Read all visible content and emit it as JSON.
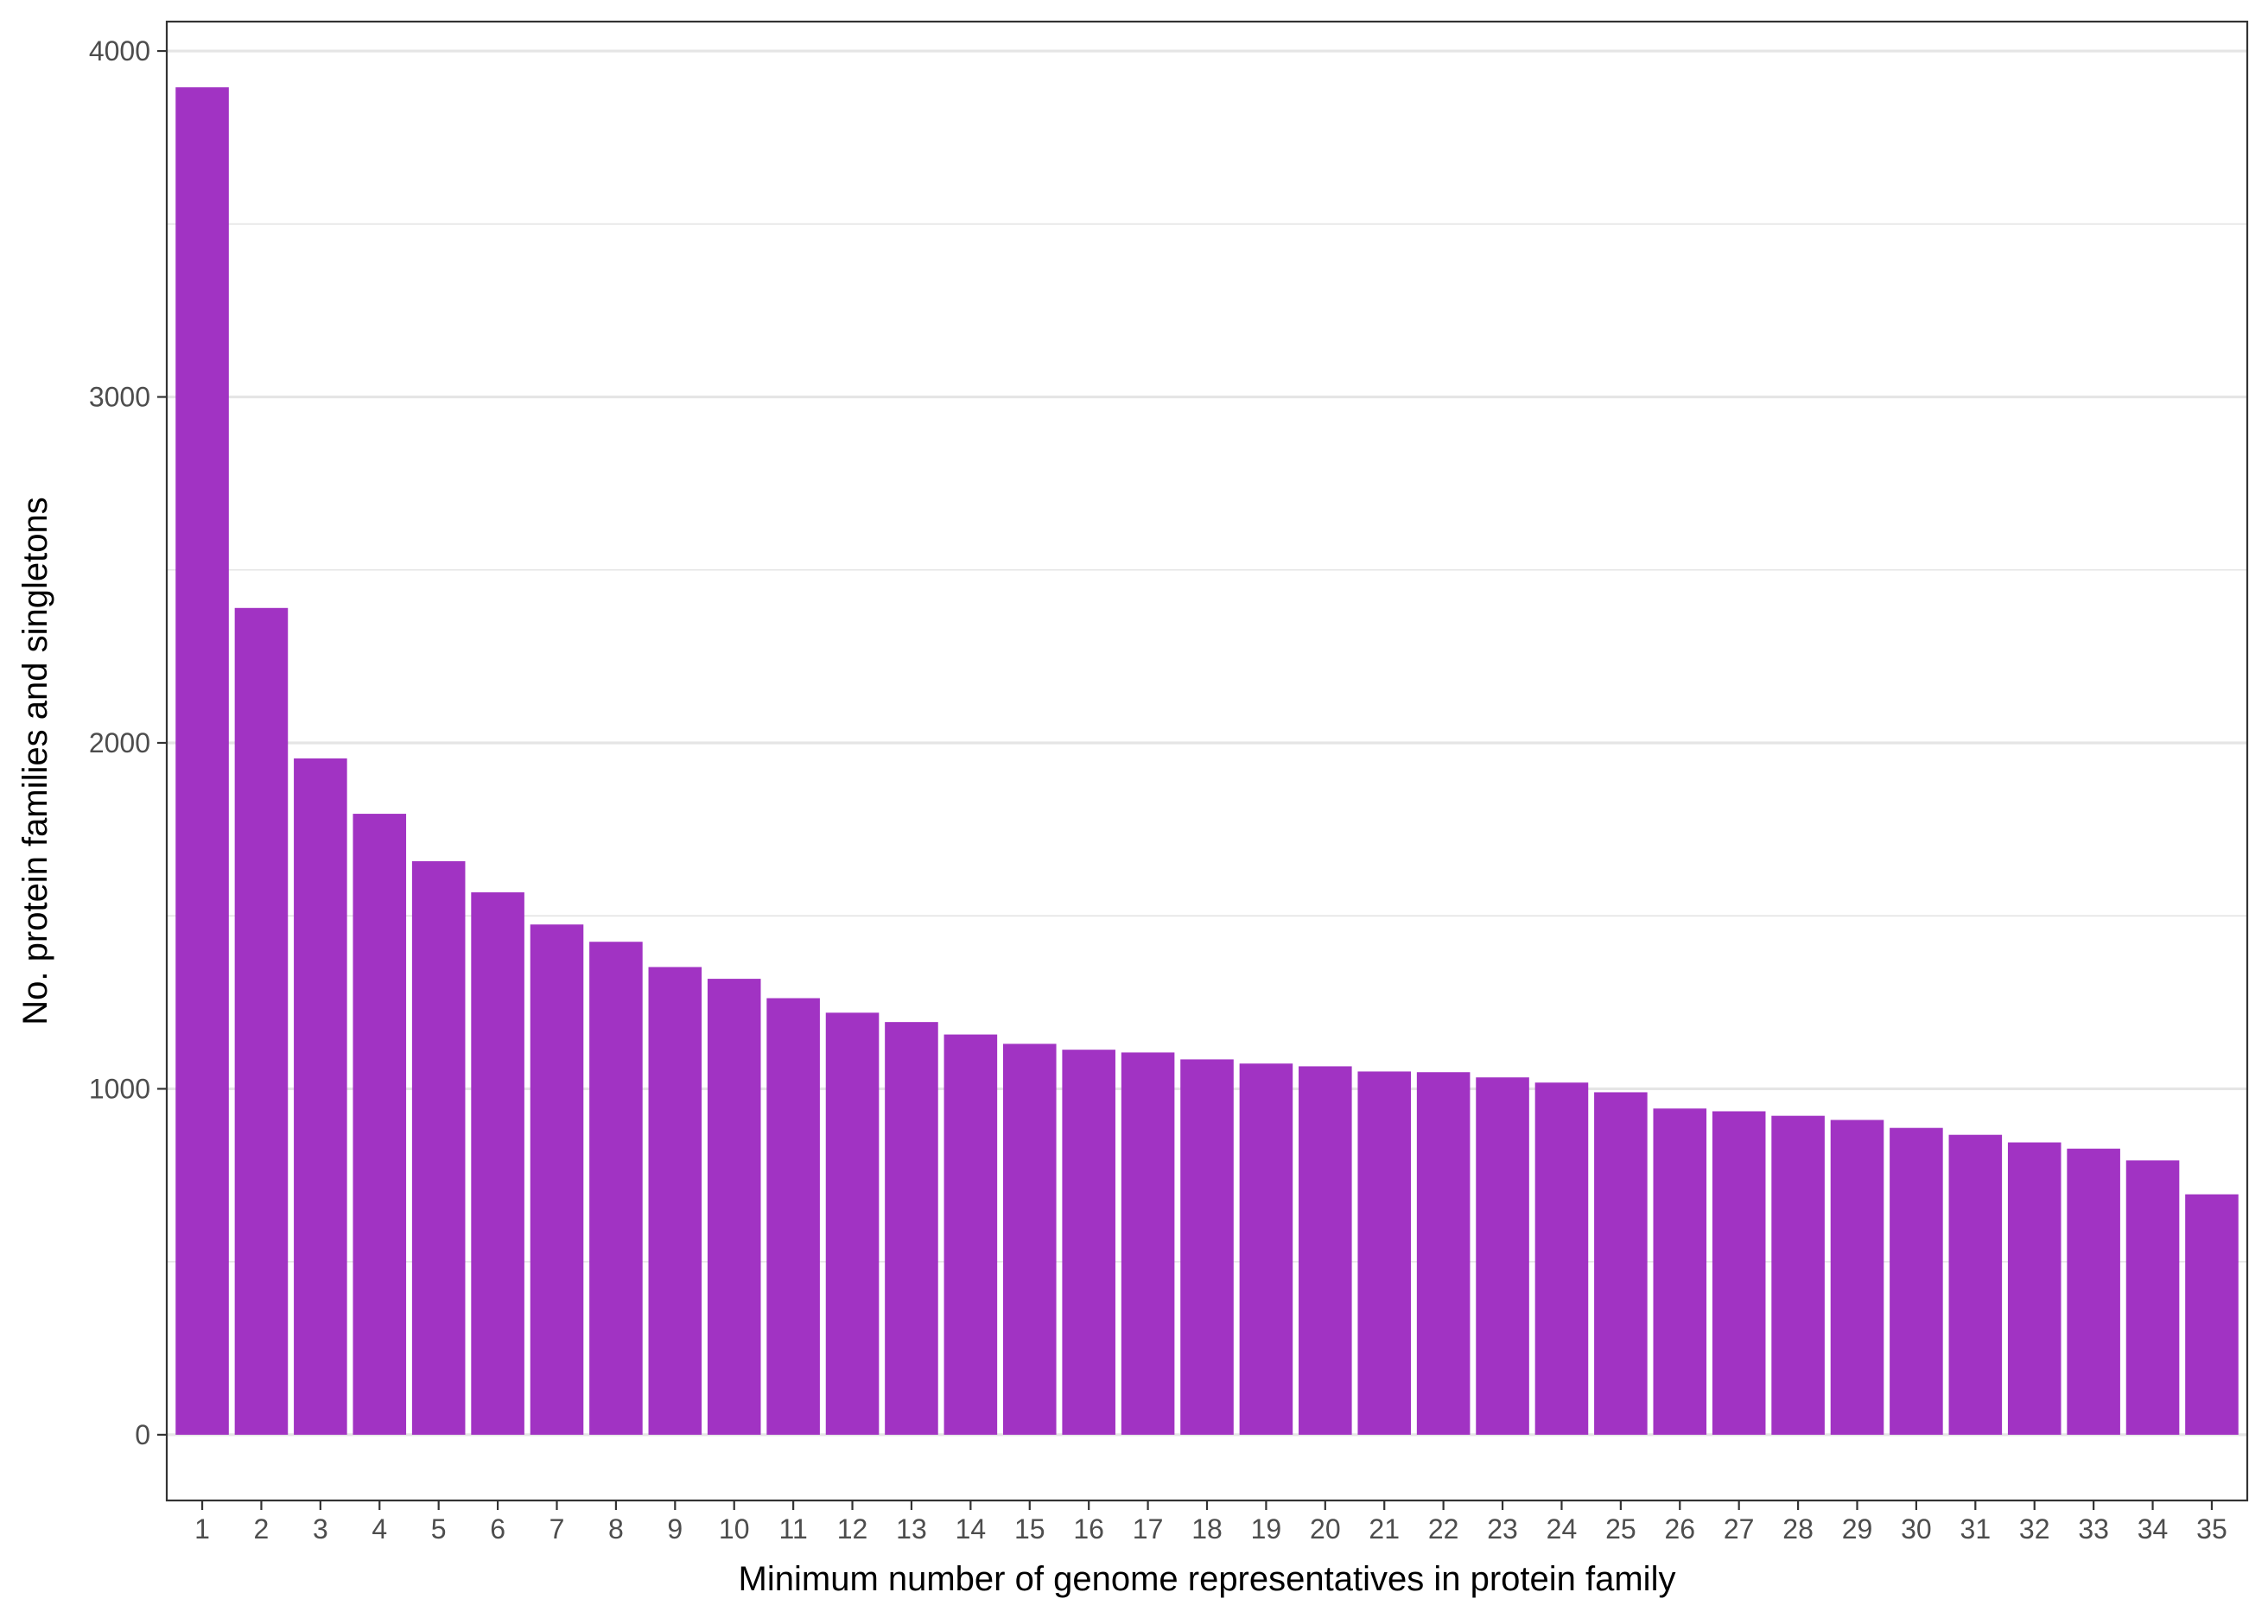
{
  "chart_data": {
    "type": "bar",
    "title": "",
    "xlabel": "Minimum number of genome representatives in protein family",
    "ylabel": "No. protein families and singletons",
    "categories": [
      "1",
      "2",
      "3",
      "4",
      "5",
      "6",
      "7",
      "8",
      "9",
      "10",
      "11",
      "12",
      "13",
      "14",
      "15",
      "16",
      "17",
      "18",
      "19",
      "20",
      "21",
      "22",
      "23",
      "24",
      "25",
      "26",
      "27",
      "28",
      "29",
      "30",
      "31",
      "32",
      "33",
      "34",
      "35"
    ],
    "values": [
      3895,
      2390,
      1955,
      1795,
      1658,
      1568,
      1475,
      1425,
      1352,
      1318,
      1262,
      1220,
      1193,
      1157,
      1130,
      1113,
      1105,
      1085,
      1073,
      1065,
      1050,
      1048,
      1033,
      1018,
      990,
      943,
      935,
      922,
      910,
      887,
      867,
      845,
      827,
      793,
      695
    ],
    "ylim": [
      -190,
      4085
    ],
    "yticks": [
      0,
      1000,
      2000,
      3000,
      4000
    ],
    "grid": true,
    "bar_color": "#A133C3",
    "grid_color": "#e5e5e5",
    "legend": "none"
  }
}
